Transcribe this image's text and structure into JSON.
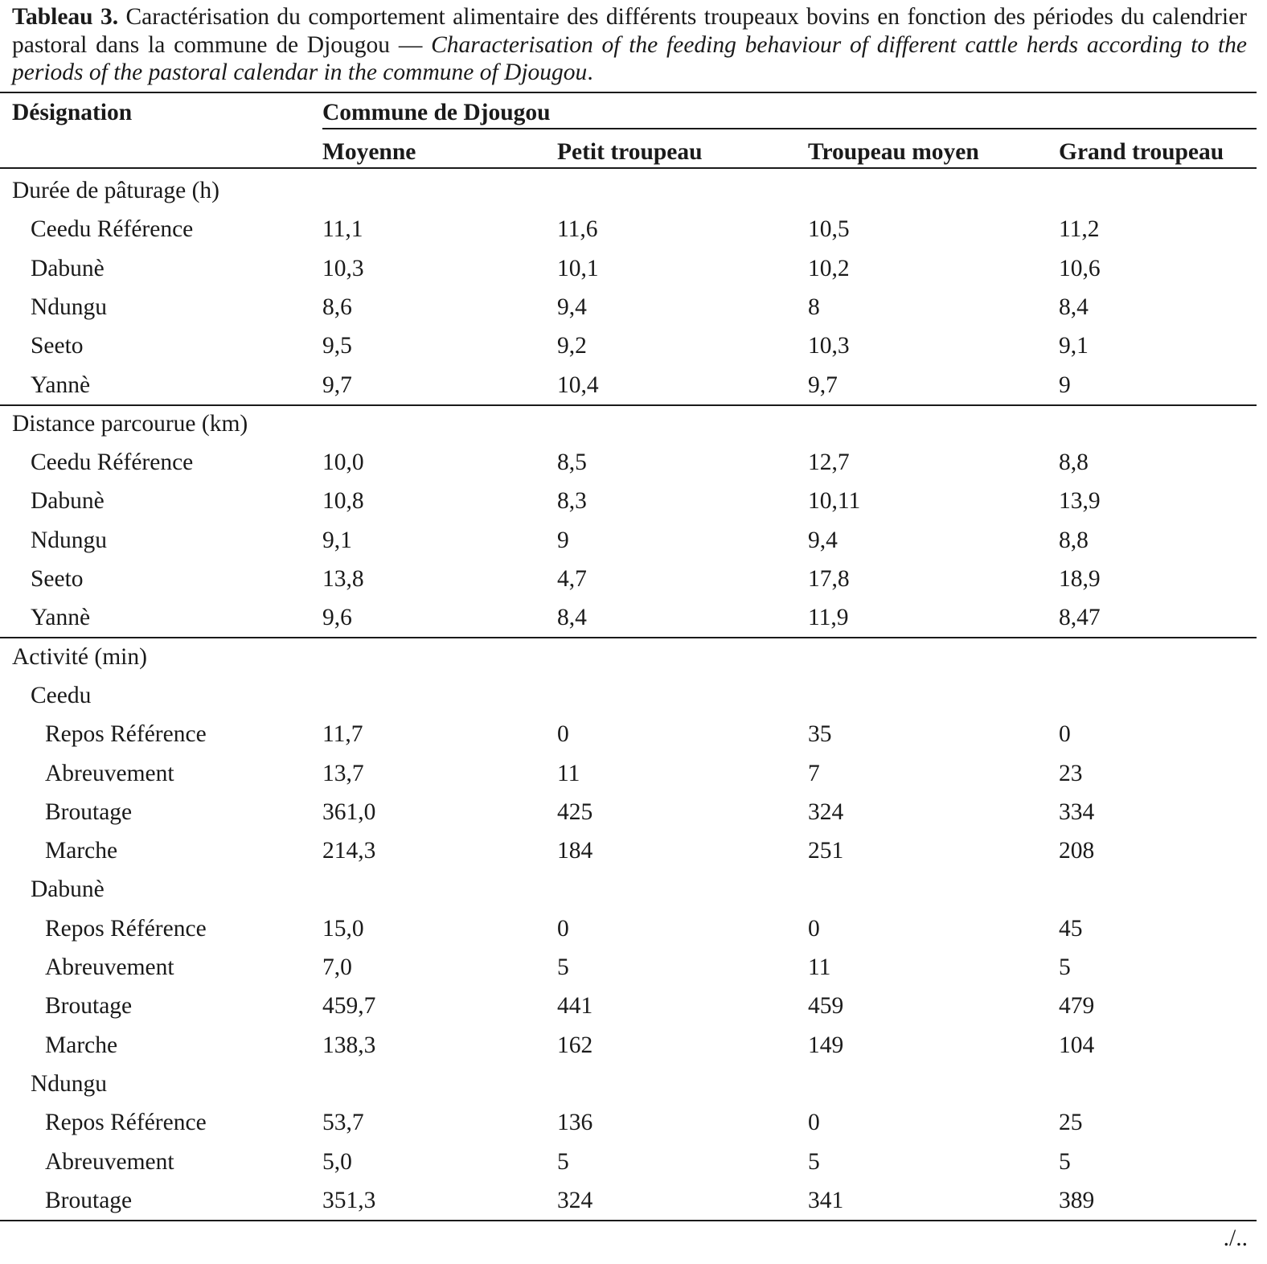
{
  "caption": {
    "label": "Tableau 3.",
    "french": " Caractérisation du comportement alimentaire des différents troupeaux bovins en fonction des périodes du calendrier pastoral dans la commune de Djougou — ",
    "english": "Characterisation of the feeding behaviour of different cattle herds according to the periods of the pastoral calendar in the commune of Djougou",
    "end": "."
  },
  "header": {
    "designation": "Désignation",
    "group": "Commune de Djougou",
    "columns": [
      "Moyenne",
      "Petit troupeau",
      "Troupeau moyen",
      "Grand troupeau"
    ]
  },
  "rows": [
    {
      "level": 0,
      "label": "Durée de pâturage (h)",
      "values": []
    },
    {
      "level": 1,
      "label": "Ceedu Référence",
      "values": [
        "11,1",
        "11,6",
        "10,5",
        "11,2"
      ]
    },
    {
      "level": 1,
      "label": "Dabunè",
      "values": [
        "10,3",
        "10,1",
        "10,2",
        "10,6"
      ]
    },
    {
      "level": 1,
      "label": "Ndungu",
      "values": [
        "8,6",
        "9,4",
        "8",
        "8,4"
      ]
    },
    {
      "level": 1,
      "label": "Seeto",
      "values": [
        "9,5",
        "9,2",
        "10,3",
        "9,1"
      ]
    },
    {
      "level": 1,
      "label": "Yannè",
      "values": [
        "9,7",
        "10,4",
        "9,7",
        "9"
      ],
      "rule_after": true
    },
    {
      "level": 0,
      "label": "Distance parcourue (km)",
      "values": []
    },
    {
      "level": 1,
      "label": "Ceedu Référence",
      "values": [
        "10,0",
        "8,5",
        "12,7",
        "8,8"
      ]
    },
    {
      "level": 1,
      "label": "Dabunè",
      "values": [
        "10,8",
        "8,3",
        "10,11",
        "13,9"
      ]
    },
    {
      "level": 1,
      "label": "Ndungu",
      "values": [
        "9,1",
        "9",
        "9,4",
        "8,8"
      ]
    },
    {
      "level": 1,
      "label": "Seeto",
      "values": [
        "13,8",
        "4,7",
        "17,8",
        "18,9"
      ]
    },
    {
      "level": 1,
      "label": "Yannè",
      "values": [
        "9,6",
        "8,4",
        "11,9",
        "8,47"
      ],
      "rule_after": true
    },
    {
      "level": 0,
      "label": "Activité (min)",
      "values": []
    },
    {
      "level": 1,
      "label": "Ceedu",
      "values": []
    },
    {
      "level": 2,
      "label": "Repos Référence",
      "values": [
        "11,7",
        "0",
        "35",
        "0"
      ]
    },
    {
      "level": 2,
      "label": "Abreuvement",
      "values": [
        "13,7",
        "11",
        "7",
        "23"
      ]
    },
    {
      "level": 2,
      "label": "Broutage",
      "values": [
        "361,0",
        "425",
        "324",
        "334"
      ]
    },
    {
      "level": 2,
      "label": "Marche",
      "values": [
        "214,3",
        "184",
        "251",
        "208"
      ]
    },
    {
      "level": 1,
      "label": "Dabunè",
      "values": []
    },
    {
      "level": 2,
      "label": "Repos Référence",
      "values": [
        "15,0",
        "0",
        "0",
        "45"
      ]
    },
    {
      "level": 2,
      "label": "Abreuvement",
      "values": [
        "7,0",
        "5",
        "11",
        "5"
      ]
    },
    {
      "level": 2,
      "label": "Broutage",
      "values": [
        "459,7",
        "441",
        "459",
        "479"
      ]
    },
    {
      "level": 2,
      "label": "Marche",
      "values": [
        "138,3",
        "162",
        "149",
        "104"
      ]
    },
    {
      "level": 1,
      "label": "Ndungu",
      "values": []
    },
    {
      "level": 2,
      "label": "Repos Référence",
      "values": [
        "53,7",
        "136",
        "0",
        "25"
      ]
    },
    {
      "level": 2,
      "label": "Abreuvement",
      "values": [
        "5,0",
        "5",
        "5",
        "5"
      ]
    },
    {
      "level": 2,
      "label": "Broutage",
      "values": [
        "351,3",
        "324",
        "341",
        "389"
      ],
      "rule_after": true
    }
  ],
  "continuation": "./.."
}
